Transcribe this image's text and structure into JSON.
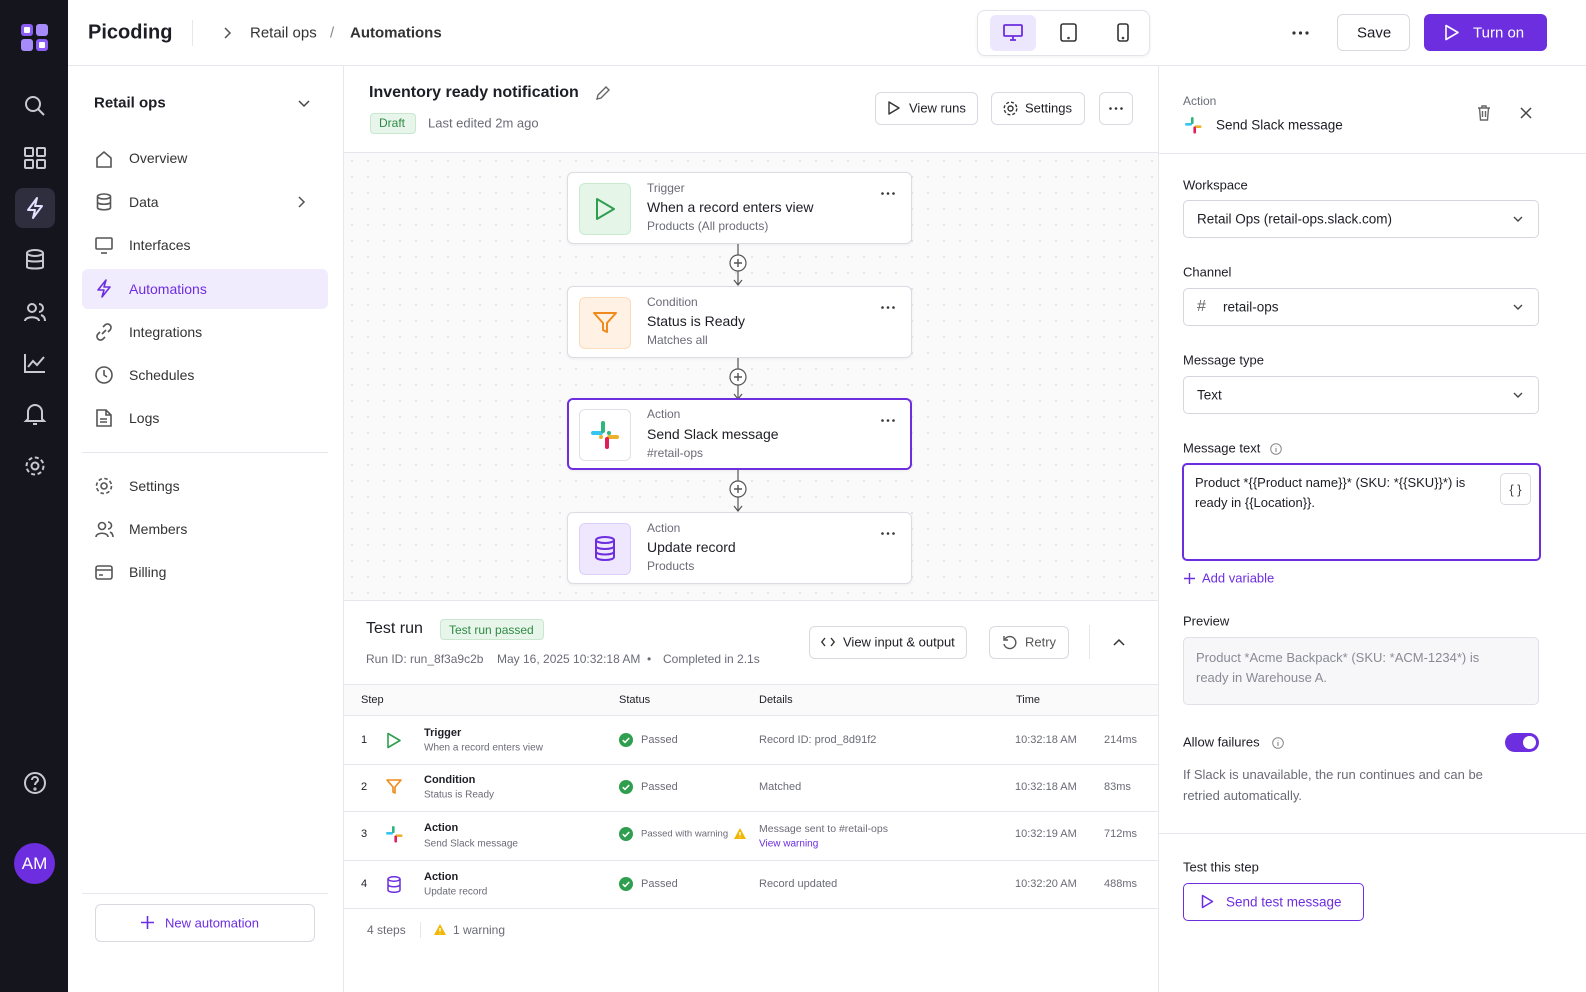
{
  "app": {
    "name": "Picoding",
    "avatar": "AM"
  },
  "breadcrumb": {
    "workspace": "Retail ops",
    "separator": "/",
    "current": "Automations"
  },
  "header": {
    "save": "Save",
    "turn_on": "Turn on"
  },
  "sidebar": {
    "workspace": "Retail ops",
    "nav": [
      "Overview",
      "Data",
      "Interfaces",
      "Automations",
      "Integrations",
      "Schedules",
      "Logs"
    ],
    "nav2": [
      "Settings",
      "Members",
      "Billing"
    ],
    "new_automation": "New automation"
  },
  "automation": {
    "title": "Inventory ready notification",
    "status": "Draft",
    "edited": "Last edited 2m ago",
    "view_runs": "View runs",
    "settings": "Settings"
  },
  "flow": [
    {
      "kind": "Trigger",
      "title": "When a record enters view",
      "subtitle": "Products (All products)"
    },
    {
      "kind": "Condition",
      "title": "Status is Ready",
      "subtitle": "Matches all"
    },
    {
      "kind": "Action",
      "title": "Send Slack message",
      "subtitle": "#retail-ops"
    },
    {
      "kind": "Action",
      "title": "Update record",
      "subtitle": "Products"
    }
  ],
  "test_run": {
    "title": "Test run",
    "badge": "Test run passed",
    "run_id": "Run ID: run_8f3a9c2b",
    "date": "May 16, 2025 10:32:18 AM",
    "bullet": "•",
    "completed": "Completed in 2.1s",
    "view_io": "View input & output",
    "retry": "Retry",
    "columns": [
      "Step",
      "Status",
      "Details",
      "Time"
    ],
    "rows": [
      {
        "num": 1,
        "kind": "Trigger",
        "name": "When a record enters view",
        "status": "Passed",
        "details": "Record ID: prod_8d91f2",
        "time": "10:32:18 AM",
        "duration": "214ms"
      },
      {
        "num": 2,
        "kind": "Condition",
        "name": "Status is Ready",
        "status": "Passed",
        "details": "Matched",
        "time": "10:32:18 AM",
        "duration": "83ms"
      },
      {
        "num": 3,
        "kind": "Action",
        "name": "Send Slack message",
        "status": "Passed with warning",
        "details": "Message sent to #retail-ops",
        "link": "View warning",
        "time": "10:32:19 AM",
        "duration": "712ms"
      },
      {
        "num": 4,
        "kind": "Action",
        "name": "Update record",
        "status": "Passed",
        "details": "Record updated",
        "time": "10:32:20 AM",
        "duration": "488ms"
      }
    ],
    "footer": {
      "steps": "4 steps",
      "warnings": "1 warning"
    }
  },
  "panel": {
    "label": "Action",
    "title": "Send Slack message",
    "fields": [
      {
        "label": "Workspace",
        "value": "Retail Ops (retail-ops.slack.com)"
      },
      {
        "label": "Channel",
        "prefix": "#",
        "value": "retail-ops"
      },
      {
        "label": "Message type",
        "value": "Text"
      }
    ],
    "message_label": "Message text",
    "message": "Product *{{Product name}}* (SKU: *{{SKU}}*) is ready in {{Location}}.",
    "variable_button": "{ }",
    "add_variable": "Add variable",
    "preview_label": "Preview",
    "preview": "Product *Acme Backpack* (SKU: *ACM-1234*) is ready in Warehouse A.",
    "allow_failures": "Allow failures",
    "allow_failures_help": "If Slack is unavailable, the run continues and can be retried automatically.",
    "test_label": "Test this step",
    "send_test": "Send test message"
  }
}
